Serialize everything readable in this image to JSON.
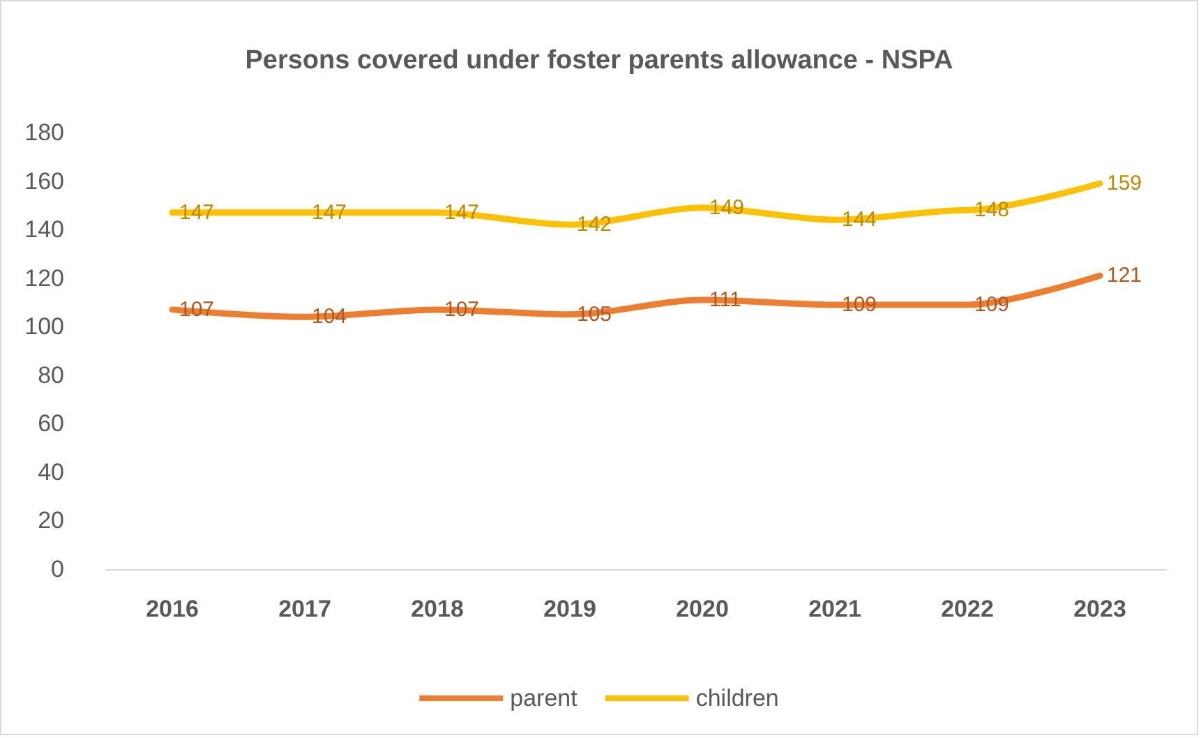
{
  "chart_data": {
    "type": "line",
    "title": "Persons covered under foster parents allowance - NSPA",
    "categories": [
      "2016",
      "2017",
      "2018",
      "2019",
      "2020",
      "2021",
      "2022",
      "2023"
    ],
    "series": [
      {
        "name": "parent",
        "color": "#ed7d31",
        "values": [
          107,
          104,
          107,
          105,
          111,
          109,
          109,
          121
        ]
      },
      {
        "name": "children",
        "color": "#ffc000",
        "values": [
          147,
          147,
          147,
          142,
          149,
          144,
          148,
          159
        ]
      }
    ],
    "ylim": [
      0,
      180
    ],
    "yticks": [
      0,
      20,
      40,
      60,
      80,
      100,
      120,
      140,
      160,
      180
    ],
    "grid": false,
    "legend": "bottom",
    "data_labels": true,
    "marker": "none",
    "line_style": "solid"
  }
}
